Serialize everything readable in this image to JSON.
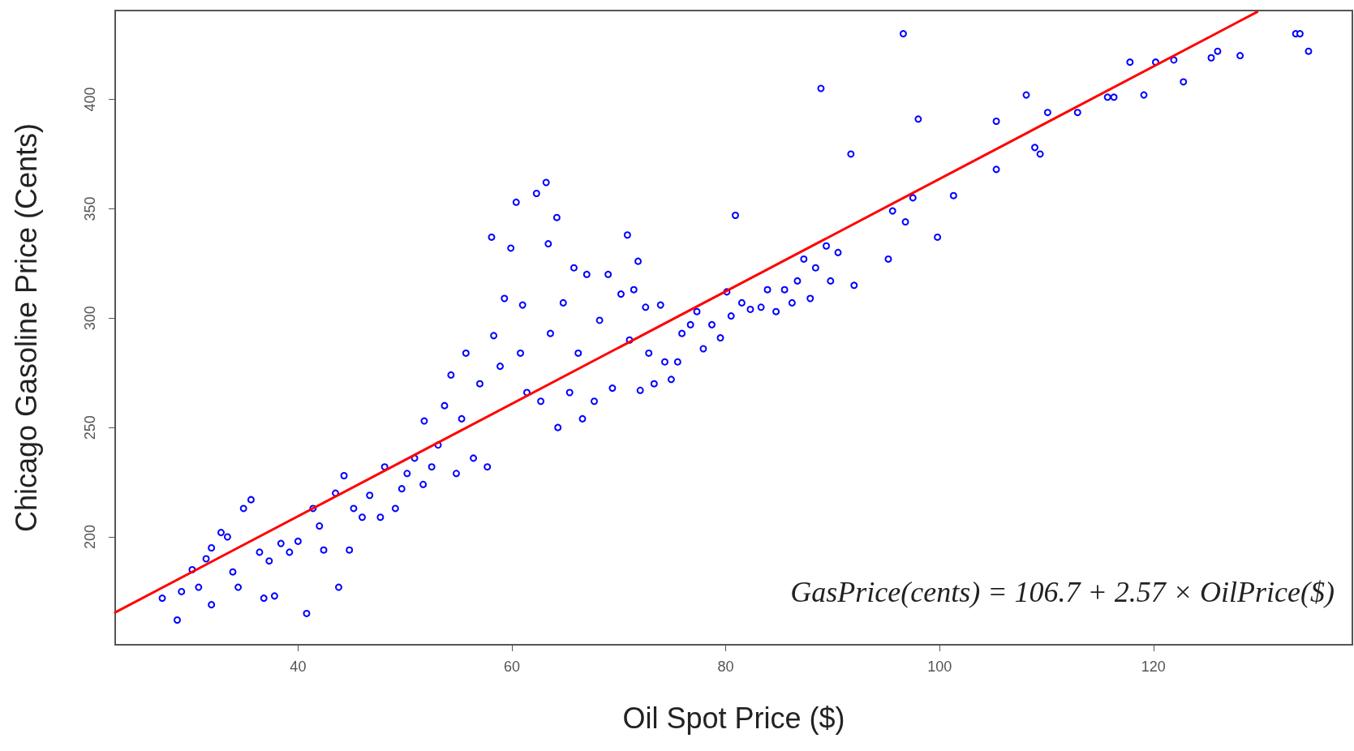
{
  "chart_data": {
    "type": "scatter",
    "xlabel": "Oil Spot Price ($)",
    "ylabel": "Chicago Gasoline Price (Cents)",
    "xlim": [
      22.9,
      138.6
    ],
    "xticks": [
      40,
      60,
      80,
      100,
      120
    ],
    "ylim": [
      150.7,
      440.6
    ],
    "yticks": [
      200,
      250,
      300,
      350,
      400
    ],
    "grid": false,
    "annotations": [
      "GasPrice(cents) = 106.7 + 2.57 × OilPrice($)"
    ],
    "series": [
      {
        "color": "#0000ff",
        "marker": "circle",
        "x": [
          27.3,
          28.7,
          29.1,
          30.1,
          30.7,
          31.4,
          31.9,
          31.9,
          32.8,
          33.4,
          33.9,
          34.4,
          34.9,
          35.6,
          36.4,
          36.8,
          37.3,
          37.8,
          38.4,
          39.2,
          40.0,
          40.8,
          41.4,
          42.0,
          42.4,
          43.5,
          43.8,
          44.3,
          44.8,
          45.2,
          46.0,
          46.7,
          47.7,
          48.1,
          49.1,
          49.7,
          50.2,
          50.9,
          51.7,
          51.8,
          52.5,
          53.1,
          53.7,
          54.3,
          54.8,
          55.3,
          55.7,
          56.4,
          57.0,
          57.7,
          58.1,
          58.3,
          58.9,
          59.3,
          59.9,
          60.4,
          60.8,
          61.0,
          61.4,
          62.3,
          62.7,
          63.2,
          63.4,
          63.6,
          64.2,
          64.3,
          64.8,
          65.4,
          65.8,
          66.2,
          66.6,
          67.0,
          67.7,
          68.2,
          69.0,
          69.4,
          70.2,
          70.8,
          71.0,
          71.4,
          71.8,
          72.0,
          72.5,
          72.8,
          73.3,
          73.9,
          74.3,
          74.9,
          75.5,
          75.9,
          76.7,
          77.3,
          77.9,
          78.7,
          79.5,
          80.1,
          80.5,
          80.9,
          81.5,
          82.3,
          83.3,
          83.9,
          84.7,
          85.5,
          86.2,
          86.7,
          87.3,
          87.9,
          88.4,
          88.9,
          89.4,
          89.8,
          90.5,
          91.7,
          92.0,
          95.2,
          95.6,
          96.6,
          96.8,
          97.5,
          98.0,
          99.8,
          101.3,
          105.3,
          105.3,
          108.1,
          108.9,
          109.4,
          110.1,
          112.9,
          115.7,
          116.3,
          117.8,
          119.1,
          120.2,
          121.9,
          122.8,
          125.4,
          126.0,
          128.1,
          133.3,
          133.7,
          134.5
        ],
        "values": [
          172,
          162,
          175,
          185,
          177,
          190,
          195,
          169,
          202,
          200,
          184,
          177,
          213,
          217,
          193,
          172,
          189,
          173,
          197,
          193,
          198,
          165,
          213,
          205,
          194,
          220,
          177,
          228,
          194,
          213,
          209,
          219,
          209,
          232,
          213,
          222,
          229,
          236,
          224,
          253,
          232,
          242,
          260,
          274,
          229,
          254,
          284,
          236,
          270,
          232,
          337,
          292,
          278,
          309,
          332,
          353,
          284,
          306,
          266,
          357,
          262,
          362,
          334,
          293,
          346,
          250,
          307,
          266,
          323,
          284,
          254,
          320,
          262,
          299,
          320,
          268,
          311,
          338,
          290,
          313,
          326,
          267,
          305,
          284,
          270,
          306,
          280,
          272,
          280,
          293,
          297,
          303,
          286,
          297,
          291,
          312,
          301,
          347,
          307,
          304,
          305,
          313,
          303,
          313,
          307,
          317,
          327,
          309,
          323,
          405,
          333,
          317,
          330,
          375,
          315,
          327,
          349,
          430,
          344,
          355,
          391,
          337,
          356,
          368,
          390,
          402,
          378,
          375,
          394,
          394,
          401,
          401,
          417,
          402,
          417,
          418,
          408,
          419,
          422,
          420,
          430,
          430,
          422
        ]
      },
      {
        "type": "line",
        "color": "#ff0000",
        "marker": "none",
        "line_style": "solid",
        "x": [
          22.9,
          129.7
        ],
        "values": [
          165.5,
          440
        ]
      }
    ]
  }
}
